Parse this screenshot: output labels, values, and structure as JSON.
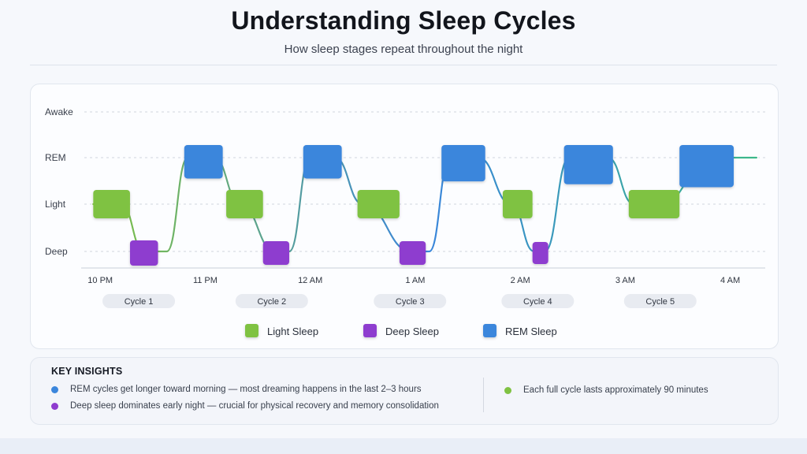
{
  "header": {
    "title": "Understanding Sleep Cycles",
    "subtitle": "How sleep stages repeat throughout the night"
  },
  "colors": {
    "light": "#7fc242",
    "deep": "#8e3ccf",
    "rem": "#3b86dc",
    "cycle_pill": "#e8ebf1"
  },
  "chart_data": {
    "type": "line",
    "title": "Understanding Sleep Cycles",
    "subtitle": "How sleep stages repeat throughout the night",
    "y_categories": [
      "Deep",
      "Light",
      "REM",
      "Awake"
    ],
    "x_ticks": [
      "10 PM",
      "11 PM",
      "12 AM",
      "1 AM",
      "2 AM",
      "3 AM",
      "4 AM"
    ],
    "x_range": [
      "9:50 PM",
      "4:20 AM"
    ],
    "grid": true,
    "legend_position": "bottom-center",
    "legend": [
      {
        "label": "Light Sleep",
        "stage": "light"
      },
      {
        "label": "Deep Sleep",
        "stage": "deep"
      },
      {
        "label": "REM Sleep",
        "stage": "rem"
      }
    ],
    "cycles": [
      {
        "label": "Cycle 1",
        "center": "10:22 PM"
      },
      {
        "label": "Cycle 2",
        "center": "11:38 PM"
      },
      {
        "label": "Cycle 3",
        "center": "12:57 AM"
      },
      {
        "label": "Cycle 4",
        "center": "2:10 AM"
      },
      {
        "label": "Cycle 5",
        "center": "3:20 AM"
      }
    ],
    "segments": [
      {
        "stage": "light",
        "start": "9:56 PM",
        "end": "10:17 PM"
      },
      {
        "stage": "deep",
        "start": "10:17 PM",
        "end": "10:33 PM"
      },
      {
        "stage": "rem",
        "start": "10:48 PM",
        "end": "11:10 PM"
      },
      {
        "stage": "light",
        "start": "11:12 PM",
        "end": "11:33 PM"
      },
      {
        "stage": "deep",
        "start": "11:33 PM",
        "end": "11:48 PM"
      },
      {
        "stage": "rem",
        "start": "11:56 PM",
        "end": "12:18 AM"
      },
      {
        "stage": "light",
        "start": "12:27 AM",
        "end": "12:51 AM"
      },
      {
        "stage": "deep",
        "start": "12:51 AM",
        "end": "1:06 AM"
      },
      {
        "stage": "rem",
        "start": "1:15 AM",
        "end": "1:40 AM"
      },
      {
        "stage": "light",
        "start": "1:50 AM",
        "end": "2:07 AM"
      },
      {
        "stage": "deep",
        "start": "2:07 AM",
        "end": "2:16 AM"
      },
      {
        "stage": "rem",
        "start": "2:25 AM",
        "end": "2:53 AM"
      },
      {
        "stage": "light",
        "start": "3:02 AM",
        "end": "3:31 AM"
      },
      {
        "stage": "rem",
        "start": "3:31 AM",
        "end": "4:02 AM"
      }
    ],
    "hypnogram": [
      [
        "9:56 PM",
        "Light"
      ],
      [
        "10:12 PM",
        "Light"
      ],
      [
        "10:25 PM",
        "Deep"
      ],
      [
        "10:38 PM",
        "Deep"
      ],
      [
        "10:50 PM",
        "REM"
      ],
      [
        "11:05 PM",
        "REM"
      ],
      [
        "11:20 PM",
        "Light"
      ],
      [
        "11:40 PM",
        "Deep"
      ],
      [
        "11:48 PM",
        "Deep"
      ],
      [
        "12:00 AM",
        "REM"
      ],
      [
        "12:14 AM",
        "REM"
      ],
      [
        "12:30 AM",
        "Light"
      ],
      [
        "12:58 AM",
        "Deep"
      ],
      [
        "1:08 AM",
        "Deep"
      ],
      [
        "1:20 AM",
        "REM"
      ],
      [
        "1:36 AM",
        "REM"
      ],
      [
        "1:55 AM",
        "Light"
      ],
      [
        "2:08 AM",
        "Deep"
      ],
      [
        "2:14 AM",
        "Deep"
      ],
      [
        "2:28 AM",
        "REM"
      ],
      [
        "2:50 AM",
        "REM"
      ],
      [
        "3:05 AM",
        "Light"
      ],
      [
        "3:20 AM",
        "Light"
      ],
      [
        "3:50 AM",
        "REM"
      ],
      [
        "4:15 AM",
        "REM"
      ]
    ]
  },
  "insights": {
    "title": "KEY INSIGHTS",
    "items": [
      {
        "text": "REM cycles get longer toward morning — most dreaming happens in the last 2–3 hours",
        "color": "#3b86dc"
      },
      {
        "text": "Deep sleep dominates early night — crucial for physical recovery and memory consolidation",
        "color": "#8e3ccf"
      },
      {
        "text": "Each full cycle lasts approximately 90 minutes",
        "color": "#7fc242"
      }
    ]
  }
}
